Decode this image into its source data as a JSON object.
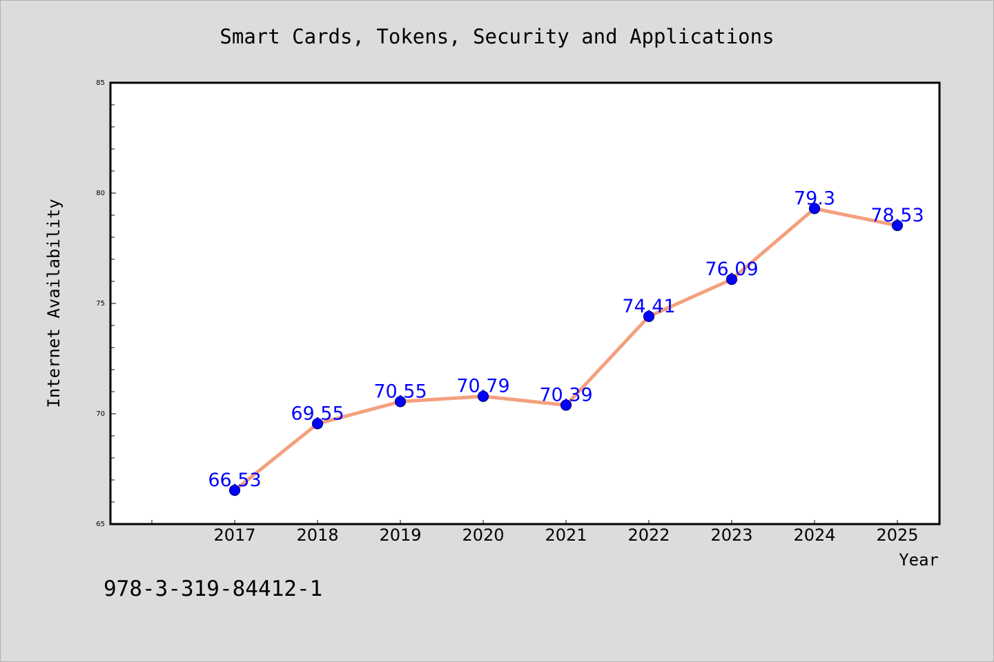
{
  "footer_code": "978-3-319-84412-1",
  "colors": {
    "background": "#dcdcdc",
    "plot_bg": "#ffffff",
    "line": "#f4a07e",
    "marker": "#0000ff",
    "label": "#0000ff",
    "axis": "#000000"
  },
  "chart_data": {
    "type": "line",
    "title": "Smart Cards, Tokens, Security and Applications",
    "xlabel": "Year",
    "ylabel": "Internet Availability",
    "x": [
      "2017",
      "2018",
      "2019",
      "2020",
      "2021",
      "2022",
      "2023",
      "2024",
      "2025"
    ],
    "series": [
      {
        "values": [
          66.53,
          69.55,
          70.55,
          70.79,
          70.39,
          74.41,
          76.09,
          79.3,
          78.53
        ]
      }
    ],
    "data_labels": [
      "66.53",
      "69.55",
      "70.55",
      "70.79",
      "70.39",
      "74.41",
      "76.09",
      "79.3",
      "78.53"
    ],
    "ylim": [
      65,
      85
    ],
    "y_ticks": [
      "65",
      "70",
      "75",
      "80",
      "85"
    ],
    "grid": false,
    "legend": "none"
  }
}
